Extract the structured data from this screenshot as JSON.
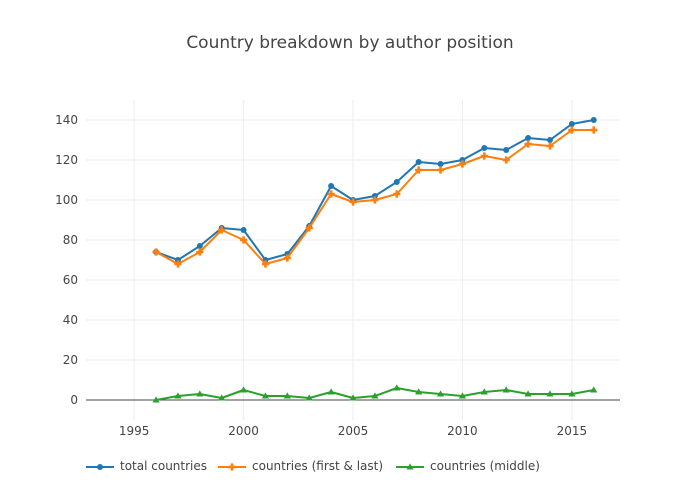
{
  "chart_data": {
    "type": "line",
    "title": "Country breakdown by author position",
    "xlabel": "",
    "ylabel": "",
    "x": [
      1996,
      1997,
      1998,
      1999,
      2000,
      2001,
      2002,
      2003,
      2004,
      2005,
      2006,
      2007,
      2008,
      2009,
      2010,
      2011,
      2012,
      2013,
      2014,
      2015,
      2016
    ],
    "xlim": [
      1992.8,
      2017.2
    ],
    "ylim": [
      -10,
      150
    ],
    "xticks": [
      1995,
      2000,
      2005,
      2010,
      2015
    ],
    "yticks": [
      0,
      20,
      40,
      60,
      80,
      100,
      120,
      140
    ],
    "grid": true,
    "legend_position": "bottom-left",
    "series": [
      {
        "name": "total countries",
        "color": "#1f77b4",
        "marker": "circle",
        "values": [
          74,
          70,
          77,
          86,
          85,
          70,
          73,
          87,
          107,
          100,
          102,
          109,
          119,
          118,
          120,
          126,
          125,
          131,
          130,
          138,
          140
        ]
      },
      {
        "name": "countries (first & last)",
        "color": "#ff7f0e",
        "marker": "cross",
        "values": [
          74,
          68,
          74,
          85,
          80,
          68,
          71,
          86,
          103,
          99,
          100,
          103,
          115,
          115,
          118,
          122,
          120,
          128,
          127,
          135,
          135
        ]
      },
      {
        "name": "countries (middle)",
        "color": "#2ca02c",
        "marker": "triangle",
        "values": [
          0,
          2,
          3,
          1,
          5,
          2,
          2,
          1,
          4,
          1,
          2,
          6,
          4,
          3,
          2,
          4,
          5,
          3,
          3,
          3,
          5
        ]
      }
    ]
  }
}
